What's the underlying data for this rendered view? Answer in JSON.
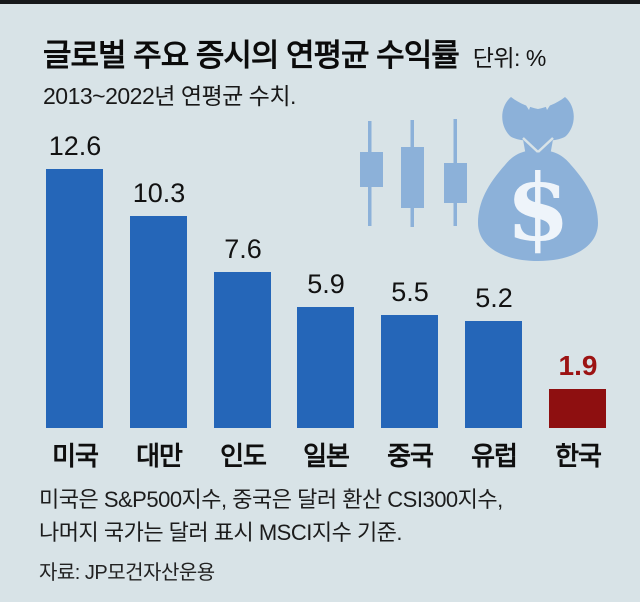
{
  "page": {
    "background_color": "#d8e3e7",
    "top_border_color": "#17191b"
  },
  "header": {
    "title": "글로벌 주요 증시의 연평균 수익률",
    "unit_label": "단위: %",
    "subtitle": "2013~2022년 연평균 수치."
  },
  "chart_data": {
    "type": "bar",
    "title": "글로벌 주요 증시의 연평균 수익률",
    "subtitle": "2013~2022년 연평균 수치.",
    "unit": "%",
    "categories": [
      "미국",
      "대만",
      "인도",
      "일본",
      "중국",
      "유럽",
      "한국"
    ],
    "values": [
      12.6,
      10.3,
      7.6,
      5.9,
      5.5,
      5.2,
      1.9
    ],
    "value_labels": [
      "12.6",
      "10.3",
      "7.6",
      "5.9",
      "5.5",
      "5.2",
      "1.9"
    ],
    "highlight_index": 6,
    "bar_color": "#2566b8",
    "highlight_bar_color": "#8e0f10",
    "value_label_color": "#121212",
    "highlight_value_label_color": "#9c1313",
    "xlabel": "",
    "ylabel": "",
    "ylim": [
      0,
      13
    ],
    "grid": false,
    "legend": false
  },
  "illustration": {
    "candlestick_icon": "candlestick-chart-icon",
    "money_bag_icon": "money-bag-icon",
    "dollar_symbol": "$",
    "icon_color": "#8cb1d9",
    "symbol_color": "#eef4fa"
  },
  "footnotes": {
    "line1": "미국은 S&P500지수, 중국은 달러 환산 CSI300지수,",
    "line2": "나머지 국가는 달러 표시 MSCI지수 기준.",
    "source": "자료: JP모건자산운용"
  }
}
